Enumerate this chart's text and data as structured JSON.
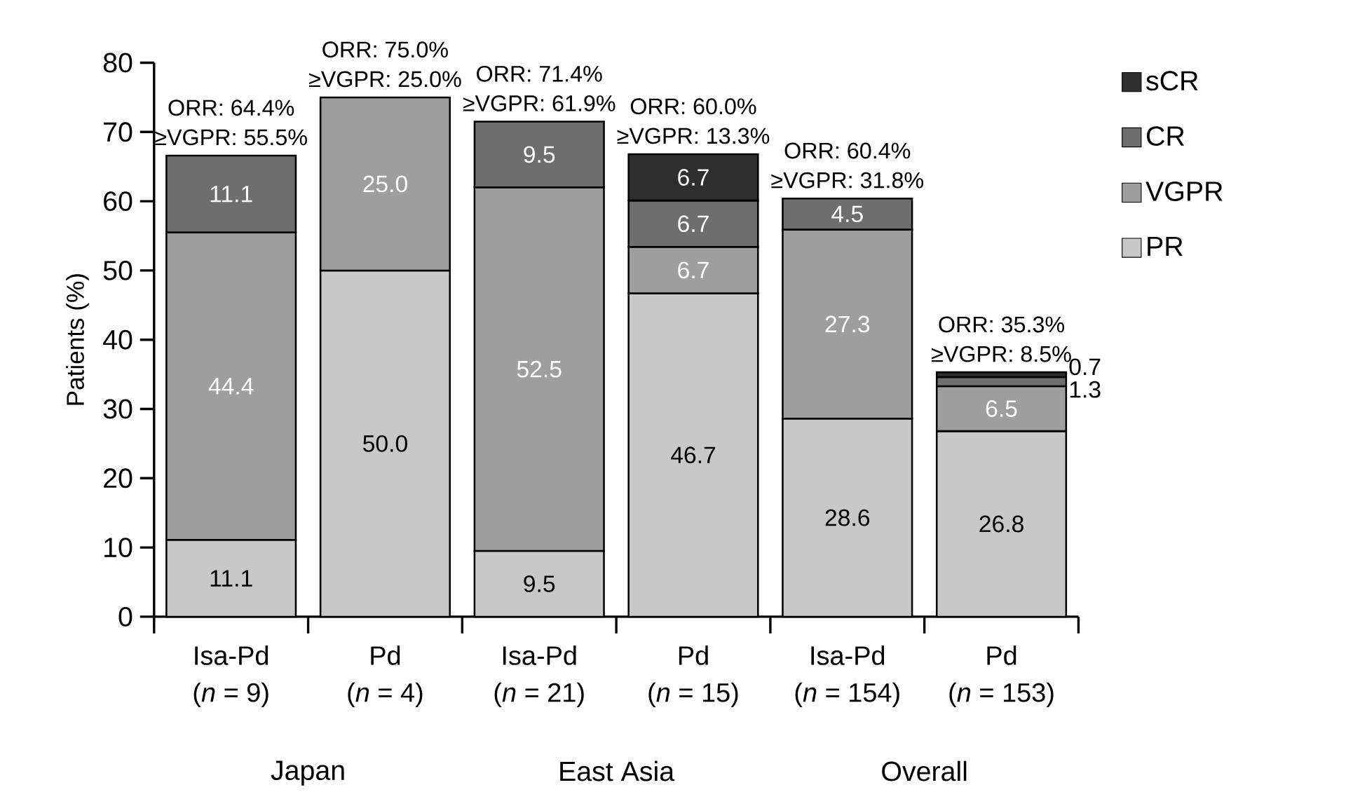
{
  "chart_data": {
    "type": "bar",
    "stacked": true,
    "ylabel": "Patients (%)",
    "categories": [
      "Isa-Pd",
      "Pd",
      "Isa-Pd",
      "Pd",
      "Isa-Pd",
      "Pd"
    ],
    "series": [
      {
        "name": "PR",
        "color": "#c8c8c8",
        "values": [
          11.1,
          50.0,
          9.5,
          46.7,
          28.6,
          26.8
        ],
        "value_labels": [
          "11.1",
          "50.0",
          "9.5",
          "46.7",
          "28.6",
          "26.8"
        ]
      },
      {
        "name": "VGPR",
        "color": "#9e9e9e",
        "values": [
          44.4,
          25.0,
          52.5,
          6.7,
          27.3,
          6.5
        ],
        "value_labels": [
          "44.4",
          "25.0",
          "52.5",
          "6.7",
          "27.3",
          "6.5"
        ]
      },
      {
        "name": "CR",
        "color": "#6e6e6e",
        "values": [
          11.1,
          null,
          9.5,
          6.7,
          4.5,
          1.3
        ],
        "value_labels": [
          "11.1",
          null,
          "9.5",
          "6.7",
          "4.5",
          "1.3"
        ]
      },
      {
        "name": "sCR",
        "color": "#2e2e2e",
        "values": [
          null,
          null,
          null,
          6.7,
          null,
          0.7
        ],
        "value_labels": [
          null,
          null,
          null,
          "6.7",
          null,
          "0.7"
        ]
      }
    ],
    "ylim": [
      0,
      80
    ],
    "yticks": [
      0,
      10,
      20,
      30,
      40,
      50,
      60,
      70,
      80
    ],
    "legend": "top right",
    "annotations": [
      "ORR: 64.4%",
      "≥VGPR: 55.5%",
      "ORR: 75.0%",
      "≥VGPR: 25.0%",
      "ORR: 71.4%",
      "≥VGPR: 61.9%",
      "ORR: 60.0%",
      "≥VGPR: 13.3%",
      "ORR: 60.4%",
      "≥VGPR: 31.8%",
      "ORR: 35.3%",
      "≥VGPR: 8.5%",
      "(*n* = 9)",
      "(*n* = 4)",
      "(*n* = 21)",
      "(*n* = 15)",
      "(*n* = 154)",
      "(*n* = 153)",
      "Japan",
      "East Asia",
      "Overall"
    ]
  }
}
